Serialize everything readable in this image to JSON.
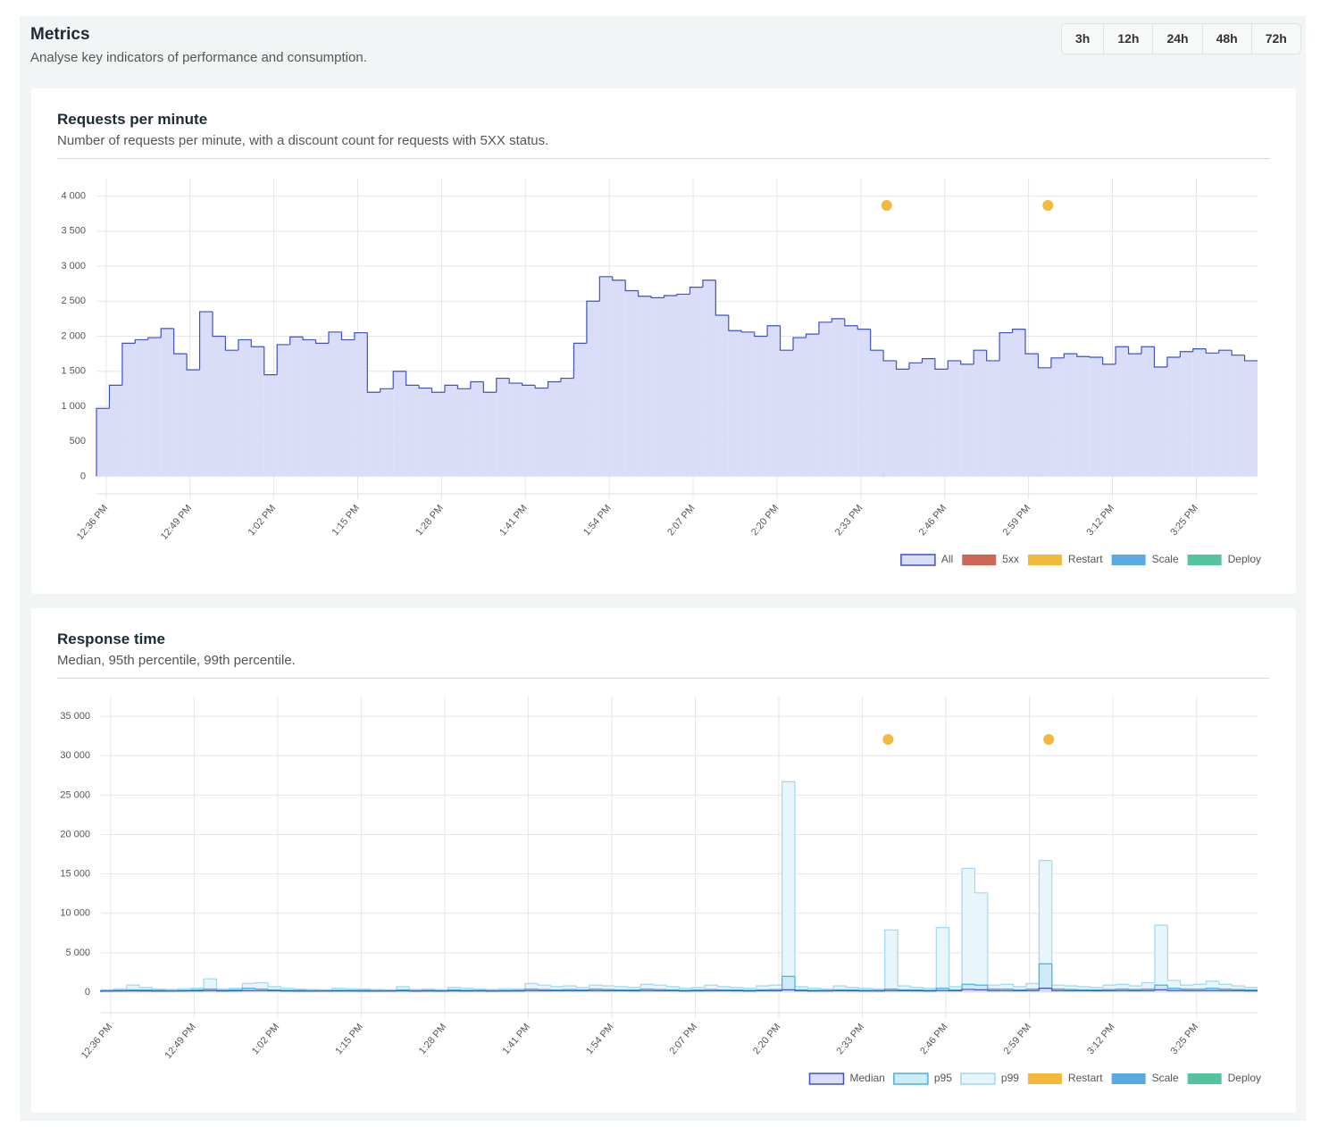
{
  "header": {
    "title": "Metrics",
    "subtitle": "Analyse key indicators of performance and consumption."
  },
  "ranges": [
    "3h",
    "12h",
    "24h",
    "48h",
    "72h"
  ],
  "chart_data": [
    {
      "type": "step",
      "title": "Requests per minute",
      "subtitle": "Number of requests per minute, with a discount count for requests with 5XX status.",
      "xlim": [
        34.5,
        214.5
      ],
      "ylim": [
        -250,
        4250
      ],
      "grid": true,
      "xticks": [
        {
          "value": 36,
          "label": "12:36 PM"
        },
        {
          "value": 49,
          "label": "12:49 PM"
        },
        {
          "value": 62,
          "label": "1:02 PM"
        },
        {
          "value": 75,
          "label": "1:15 PM"
        },
        {
          "value": 88,
          "label": "1:28 PM"
        },
        {
          "value": 101,
          "label": "1:41 PM"
        },
        {
          "value": 114,
          "label": "1:54 PM"
        },
        {
          "value": 127,
          "label": "2:07 PM"
        },
        {
          "value": 140,
          "label": "2:20 PM"
        },
        {
          "value": 153,
          "label": "2:33 PM"
        },
        {
          "value": 166,
          "label": "2:46 PM"
        },
        {
          "value": 179,
          "label": "2:59 PM"
        },
        {
          "value": 192,
          "label": "3:12 PM"
        },
        {
          "value": 205,
          "label": "3:25 PM"
        }
      ],
      "yticks": [
        0,
        500,
        {
          "value": 1000,
          "label": "1 000"
        },
        {
          "value": 1500,
          "label": "1 500"
        },
        {
          "value": 2000,
          "label": "2 000"
        },
        {
          "value": 2500,
          "label": "2 500"
        },
        {
          "value": 3000,
          "label": "3 000"
        },
        {
          "value": 3500,
          "label": "3 500"
        },
        {
          "value": 4000,
          "label": "4 000"
        }
      ],
      "x": [
        34.5,
        36.5,
        38.5,
        40.5,
        42.5,
        44.5,
        46.5,
        48.5,
        50.5,
        52.5,
        54.5,
        56.5,
        58.5,
        60.5,
        62.5,
        64.5,
        66.5,
        68.5,
        70.5,
        72.5,
        74.5,
        76.5,
        78.5,
        80.5,
        82.5,
        84.5,
        86.5,
        88.5,
        90.5,
        92.5,
        94.5,
        96.5,
        98.5,
        100.5,
        102.5,
        104.5,
        106.5,
        108.5,
        110.5,
        112.5,
        114.5,
        116.5,
        118.5,
        120.5,
        122.5,
        124.5,
        126.5,
        128.5,
        130.5,
        132.5,
        134.5,
        136.5,
        138.5,
        140.5,
        142.5,
        144.5,
        146.5,
        148.5,
        150.5,
        152.5,
        154.5,
        156.5,
        158.5,
        160.5,
        162.5,
        164.5,
        166.5,
        168.5,
        170.5,
        172.5,
        174.5,
        176.5,
        178.5,
        180.5,
        182.5,
        184.5,
        186.5,
        188.5,
        190.5,
        192.5,
        194.5,
        196.5,
        198.5,
        200.5,
        202.5,
        204.5,
        206.5,
        208.5,
        210.5,
        212.5
      ],
      "series": [
        {
          "name": "All",
          "type": "step",
          "color": "#3f51c4",
          "fill": "#d9ddf7",
          "values": [
            970,
            1300,
            1900,
            1950,
            1980,
            2110,
            1750,
            1520,
            2350,
            2000,
            1800,
            1950,
            1850,
            1450,
            1880,
            1990,
            1950,
            1900,
            2060,
            1950,
            2050,
            1200,
            1250,
            1500,
            1300,
            1260,
            1200,
            1300,
            1250,
            1350,
            1200,
            1400,
            1330,
            1300,
            1260,
            1350,
            1400,
            1900,
            2500,
            2850,
            2800,
            2650,
            2570,
            2550,
            2580,
            2600,
            2700,
            2800,
            2300,
            2080,
            2060,
            2000,
            2150,
            1800,
            1980,
            2030,
            2200,
            2250,
            2150,
            2100,
            1800,
            1650,
            1530,
            1620,
            1680,
            1530,
            1650,
            1600,
            1800,
            1650,
            2050,
            2100,
            1750,
            1550,
            1690,
            1750,
            1710,
            1700,
            1600,
            1850,
            1750,
            1850,
            1560,
            1700,
            1780,
            1820,
            1760,
            1800,
            1730,
            1650
          ]
        },
        {
          "name": "5xx",
          "type": "bar",
          "color": "#cc6655",
          "x": [
            156.5,
            180.5
          ],
          "values": [
            60,
            30
          ]
        },
        {
          "name": "Restart",
          "type": "event",
          "color": "#f3b93c",
          "x": [
            157,
            182
          ]
        },
        {
          "name": "Scale",
          "type": "event",
          "color": "#5aa9e0",
          "x": []
        },
        {
          "name": "Deploy",
          "type": "event",
          "color": "#55c39f",
          "x": []
        }
      ]
    },
    {
      "type": "step",
      "title": "Response time",
      "subtitle": "Median, 95th percentile, 99th percentile.",
      "xlim": [
        34.5,
        214.5
      ],
      "ylim": [
        -2600,
        37500
      ],
      "grid": true,
      "xticks": [
        {
          "value": 36,
          "label": "12:36 PM"
        },
        {
          "value": 49,
          "label": "12:49 PM"
        },
        {
          "value": 62,
          "label": "1:02 PM"
        },
        {
          "value": 75,
          "label": "1:15 PM"
        },
        {
          "value": 88,
          "label": "1:28 PM"
        },
        {
          "value": 101,
          "label": "1:41 PM"
        },
        {
          "value": 114,
          "label": "1:54 PM"
        },
        {
          "value": 127,
          "label": "2:07 PM"
        },
        {
          "value": 140,
          "label": "2:20 PM"
        },
        {
          "value": 153,
          "label": "2:33 PM"
        },
        {
          "value": 166,
          "label": "2:46 PM"
        },
        {
          "value": 179,
          "label": "2:59 PM"
        },
        {
          "value": 192,
          "label": "3:12 PM"
        },
        {
          "value": 205,
          "label": "3:25 PM"
        }
      ],
      "yticks": [
        0,
        {
          "value": 5000,
          "label": "5 000"
        },
        {
          "value": 10000,
          "label": "10 000"
        },
        {
          "value": 15000,
          "label": "15 000"
        },
        {
          "value": 20000,
          "label": "20 000"
        },
        {
          "value": 25000,
          "label": "25 000"
        },
        {
          "value": 30000,
          "label": "30 000"
        },
        {
          "value": 35000,
          "label": "35 000"
        }
      ],
      "x": [
        34.5,
        36.5,
        38.5,
        40.5,
        42.5,
        44.5,
        46.5,
        48.5,
        50.5,
        52.5,
        54.5,
        56.5,
        58.5,
        60.5,
        62.5,
        64.5,
        66.5,
        68.5,
        70.5,
        72.5,
        74.5,
        76.5,
        78.5,
        80.5,
        82.5,
        84.5,
        86.5,
        88.5,
        90.5,
        92.5,
        94.5,
        96.5,
        98.5,
        100.5,
        102.5,
        104.5,
        106.5,
        108.5,
        110.5,
        112.5,
        114.5,
        116.5,
        118.5,
        120.5,
        122.5,
        124.5,
        126.5,
        128.5,
        130.5,
        132.5,
        134.5,
        136.5,
        138.5,
        140.5,
        142.5,
        144.5,
        146.5,
        148.5,
        150.5,
        152.5,
        154.5,
        156.5,
        158.5,
        160.5,
        162.5,
        164.5,
        166.5,
        168.5,
        170.5,
        172.5,
        174.5,
        176.5,
        178.5,
        180.5,
        182.5,
        184.5,
        186.5,
        188.5,
        190.5,
        192.5,
        194.5,
        196.5,
        198.5,
        200.5,
        202.5,
        204.5,
        206.5,
        208.5,
        210.5,
        212.5
      ],
      "series": [
        {
          "name": "Median",
          "type": "step",
          "color": "#3f51c4",
          "fill": "#d9ddf7",
          "values": [
            150,
            160,
            170,
            160,
            150,
            150,
            160,
            170,
            200,
            160,
            170,
            200,
            200,
            180,
            160,
            150,
            150,
            150,
            160,
            160,
            150,
            150,
            150,
            170,
            150,
            160,
            150,
            170,
            160,
            160,
            150,
            160,
            160,
            200,
            190,
            180,
            190,
            180,
            200,
            190,
            180,
            180,
            200,
            190,
            180,
            160,
            170,
            190,
            180,
            180,
            160,
            180,
            190,
            300,
            180,
            160,
            160,
            180,
            180,
            160,
            160,
            200,
            180,
            180,
            160,
            220,
            180,
            350,
            300,
            200,
            200,
            180,
            200,
            500,
            200,
            190,
            180,
            180,
            190,
            200,
            190,
            200,
            300,
            220,
            200,
            200,
            220,
            200,
            190,
            170
          ]
        },
        {
          "name": "p95",
          "type": "step",
          "color": "#48b0e0",
          "fill": "#cdeaf7",
          "values": [
            200,
            250,
            300,
            300,
            250,
            200,
            250,
            300,
            400,
            250,
            300,
            500,
            400,
            300,
            250,
            250,
            200,
            200,
            250,
            250,
            250,
            200,
            200,
            300,
            200,
            250,
            200,
            300,
            250,
            250,
            200,
            250,
            250,
            400,
            350,
            300,
            350,
            300,
            400,
            350,
            300,
            300,
            400,
            350,
            300,
            250,
            300,
            350,
            300,
            300,
            250,
            300,
            350,
            2000,
            300,
            250,
            250,
            300,
            300,
            250,
            250,
            400,
            300,
            300,
            250,
            500,
            300,
            1000,
            900,
            400,
            400,
            300,
            400,
            3600,
            400,
            350,
            300,
            300,
            350,
            400,
            350,
            400,
            900,
            500,
            400,
            400,
            500,
            400,
            350,
            300
          ]
        },
        {
          "name": "p99",
          "type": "step",
          "color": "#9fd8f0",
          "fill": "#e8f6fc",
          "values": [
            300,
            400,
            900,
            600,
            400,
            350,
            450,
            500,
            1700,
            400,
            500,
            1100,
            1200,
            700,
            500,
            400,
            350,
            300,
            500,
            450,
            400,
            350,
            300,
            700,
            350,
            400,
            300,
            600,
            500,
            400,
            350,
            450,
            400,
            1100,
            900,
            700,
            800,
            600,
            900,
            800,
            700,
            600,
            1000,
            900,
            700,
            500,
            600,
            900,
            700,
            600,
            500,
            800,
            900,
            26700,
            700,
            500,
            400,
            800,
            600,
            500,
            400,
            7900,
            800,
            600,
            500,
            8200,
            700,
            15700,
            12600,
            900,
            1000,
            700,
            1100,
            16700,
            900,
            800,
            700,
            600,
            900,
            1000,
            800,
            1200,
            8500,
            1500,
            900,
            1000,
            1400,
            1000,
            800,
            600
          ]
        },
        {
          "name": "Restart",
          "type": "event",
          "color": "#f3b93c",
          "x": [
            157,
            182
          ]
        },
        {
          "name": "Scale",
          "type": "event",
          "color": "#5aa9e0",
          "x": []
        },
        {
          "name": "Deploy",
          "type": "event",
          "color": "#55c39f",
          "x": []
        }
      ]
    }
  ]
}
